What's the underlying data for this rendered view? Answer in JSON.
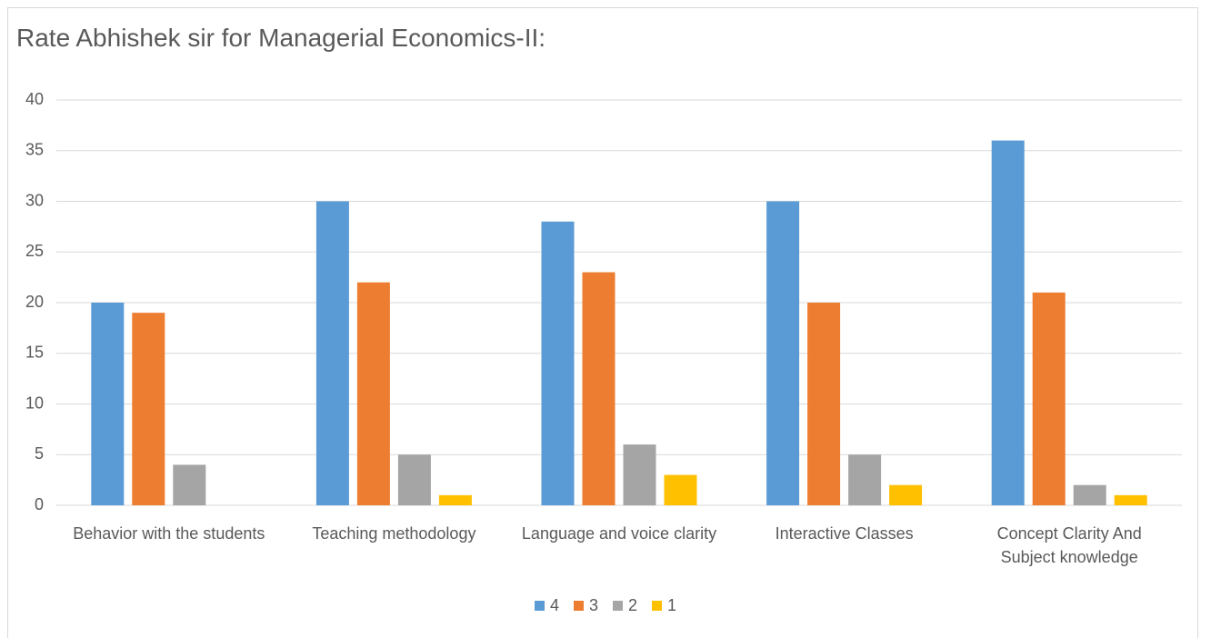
{
  "chart_data": {
    "type": "bar",
    "title": "Rate Abhishek sir for Managerial Economics-II:",
    "categories": [
      "Behavior with the students",
      "Teaching methodology",
      "Language and voice clarity",
      "Interactive Classes",
      "Concept Clarity And Subject knowledge"
    ],
    "series": [
      {
        "name": "4",
        "color": "#5b9bd5",
        "values": [
          20,
          30,
          28,
          30,
          36
        ]
      },
      {
        "name": "3",
        "color": "#ed7d31",
        "values": [
          19,
          22,
          23,
          20,
          21
        ]
      },
      {
        "name": "2",
        "color": "#a5a5a5",
        "values": [
          4,
          5,
          6,
          5,
          2
        ]
      },
      {
        "name": "1",
        "color": "#ffc000",
        "values": [
          0,
          1,
          3,
          2,
          1
        ]
      }
    ],
    "ylim": [
      0,
      40
    ],
    "yticks": [
      0,
      5,
      10,
      15,
      20,
      25,
      30,
      35,
      40
    ],
    "grid": true,
    "legend": "bottom"
  }
}
